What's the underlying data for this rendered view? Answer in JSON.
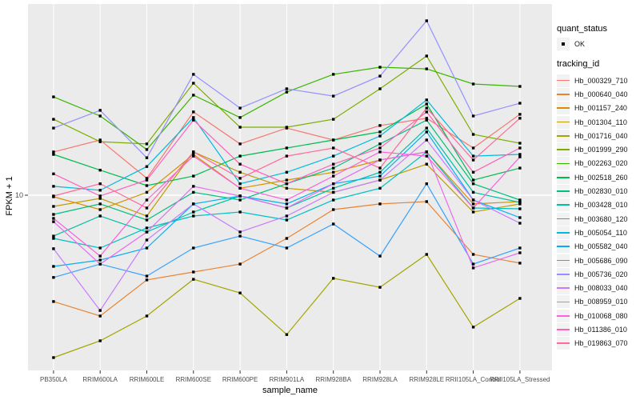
{
  "chart_data": {
    "type": "line",
    "title": "",
    "xlabel": "sample_name",
    "ylabel": "FPKM + 1",
    "y_scale": "log10",
    "y_range": [
      1.05,
      115
    ],
    "grid": "major",
    "panel_bg": "#EBEBEB",
    "grid_color": "#FFFFFF",
    "tick_label_color": "#4D4D4D",
    "y_ticks": [
      {
        "label": "10",
        "value": 10
      }
    ],
    "categories": [
      "PB350LA",
      "RRIM600LA",
      "RRIM600LE",
      "RRIM600SE",
      "RRIM600PE",
      "RRIM901LA",
      "RRIM928BA",
      "RRIM928LA",
      "RRIM928LE",
      "RRII105LA_Control",
      "RRII105LA_Stressed"
    ],
    "points": {
      "shape": "filled-square",
      "color": "#000000"
    },
    "legend": {
      "position": "right",
      "quant_status_title": "quant_status",
      "quant_status_items": [
        {
          "label": "OK",
          "marker": "black-square"
        }
      ],
      "tracking_id_title": "tracking_id"
    },
    "series": [
      {
        "name": "Hb_000329_710",
        "color": "#F8766D",
        "values": [
          18.1,
          21.3,
          12.6,
          31.3,
          20.2,
          25.1,
          21.3,
          26.0,
          28.7,
          19.1,
          30.3
        ]
      },
      {
        "name": "Hb_000640_040",
        "color": "#EA8331",
        "values": [
          2.33,
          1.91,
          3.13,
          3.49,
          3.89,
          5.53,
          8.21,
          8.87,
          9.16,
          4.44,
          3.94
        ]
      },
      {
        "name": "Hb_001157_240",
        "color": "#D89000",
        "values": [
          9.78,
          8.21,
          10.4,
          17.5,
          11.0,
          12.3,
          13.7,
          16.2,
          18.1,
          8.87,
          9.16
        ]
      },
      {
        "name": "Hb_001304_110",
        "color": "#C09B00",
        "values": [
          8.58,
          9.57,
          7.52,
          18.1,
          13.7,
          11.0,
          10.4,
          12.3,
          15.3,
          7.94,
          8.87
        ]
      },
      {
        "name": "Hb_001716_040",
        "color": "#A3A500",
        "values": [
          1.08,
          1.36,
          1.91,
          3.16,
          2.62,
          1.48,
          3.2,
          2.83,
          4.44,
          1.64,
          2.43
        ]
      },
      {
        "name": "Hb_001999_290",
        "color": "#7CAE00",
        "values": [
          28.3,
          20.8,
          20.2,
          46.4,
          25.4,
          25.4,
          28.3,
          43.0,
          67.4,
          23.0,
          20.4
        ]
      },
      {
        "name": "Hb_002263_020",
        "color": "#39B600",
        "values": [
          38.5,
          29.6,
          18.7,
          39.4,
          29.0,
          41.1,
          52.4,
          57.8,
          56.5,
          45.9,
          44.4
        ]
      },
      {
        "name": "Hb_002518_260",
        "color": "#00BB4E",
        "values": [
          17.5,
          14.1,
          11.4,
          13.0,
          17.1,
          19.1,
          21.3,
          23.8,
          34.9,
          12.3,
          14.5
        ]
      },
      {
        "name": "Hb_002830_010",
        "color": "#00BF7D",
        "values": [
          7.69,
          8.87,
          7.12,
          10.4,
          9.36,
          11.7,
          14.5,
          20.2,
          28.0,
          11.7,
          9.36
        ]
      },
      {
        "name": "Hb_003428_010",
        "color": "#00C1A3",
        "values": [
          5.71,
          7.52,
          6.04,
          7.94,
          9.89,
          8.39,
          11.0,
          13.7,
          25.1,
          10.4,
          9.06
        ]
      },
      {
        "name": "Hb_003680_120",
        "color": "#00BFC4",
        "values": [
          5.53,
          4.85,
          6.38,
          7.52,
          7.94,
          7.12,
          9.36,
          11.0,
          18.1,
          8.39,
          8.3
        ]
      },
      {
        "name": "Hb_005054_110",
        "color": "#00BAE0",
        "values": [
          11.3,
          10.7,
          14.8,
          29.0,
          11.7,
          13.7,
          17.1,
          22.5,
          36.9,
          17.1,
          17.5
        ]
      },
      {
        "name": "Hb_005582_040",
        "color": "#00B0F6",
        "values": [
          3.77,
          4.11,
          4.85,
          8.87,
          9.89,
          8.87,
          11.7,
          13.0,
          23.8,
          9.36,
          7.36
        ]
      },
      {
        "name": "Hb_005686_090",
        "color": "#35A2FF",
        "values": [
          3.24,
          3.89,
          3.3,
          4.85,
          5.71,
          4.85,
          6.74,
          4.34,
          11.7,
          3.89,
          4.85
        ]
      },
      {
        "name": "Hb_005736_020",
        "color": "#9590FF",
        "values": [
          25.1,
          32.0,
          16.7,
          52.4,
          33.0,
          43.0,
          38.9,
          51.2,
          109.2,
          29.6,
          35.3
        ]
      },
      {
        "name": "Hb_008033_040",
        "color": "#C77CFF",
        "values": [
          4.8,
          2.06,
          5.41,
          8.87,
          6.04,
          7.52,
          10.4,
          12.3,
          21.3,
          9.36,
          6.81
        ]
      },
      {
        "name": "Hb_008959_010",
        "color": "#E76BF3",
        "values": [
          6.96,
          3.89,
          6.04,
          11.3,
          9.89,
          8.39,
          11.7,
          16.2,
          18.1,
          3.69,
          4.54
        ]
      },
      {
        "name": "Hb_010068_080",
        "color": "#FA62DB",
        "values": [
          7.28,
          4.34,
          9.36,
          17.1,
          11.0,
          9.36,
          13.0,
          18.1,
          17.1,
          8.39,
          16.9
        ]
      },
      {
        "name": "Hb_011386_010",
        "color": "#FF62BC",
        "values": [
          13.4,
          9.89,
          12.3,
          28.0,
          15.3,
          11.7,
          15.3,
          19.1,
          31.3,
          13.7,
          19.1
        ]
      },
      {
        "name": "Hb_019863_070",
        "color": "#FF6A98",
        "values": [
          9.89,
          11.7,
          8.39,
          18.1,
          12.6,
          17.1,
          19.1,
          14.5,
          33.0,
          16.2,
          28.7
        ]
      }
    ]
  }
}
